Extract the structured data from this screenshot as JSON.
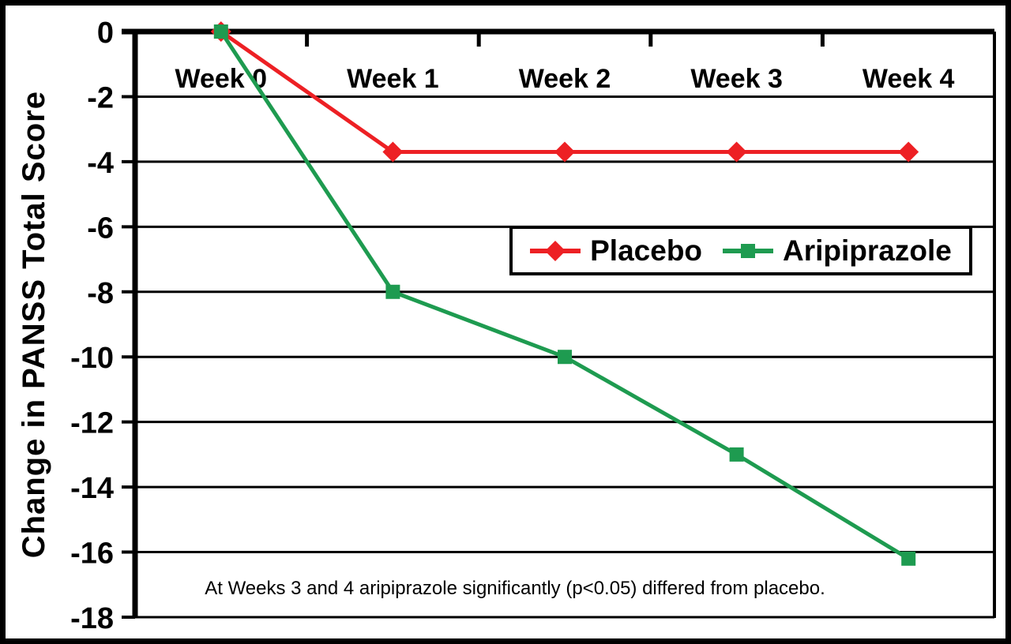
{
  "chart_data": {
    "type": "line",
    "categories": [
      "Week 0",
      "Week 1",
      "Week 2",
      "Week 3",
      "Week 4"
    ],
    "series": [
      {
        "name": "Placebo",
        "color": "#ed2024",
        "marker": "diamond",
        "values": [
          0,
          -3.7,
          -3.7,
          -3.7,
          -3.7
        ]
      },
      {
        "name": "Aripiprazole",
        "color": "#1e9b50",
        "marker": "square",
        "values": [
          0,
          -8,
          -10,
          -13,
          -16.2
        ]
      }
    ],
    "xlabel": "",
    "ylabel": "Change in PANSS Total Score",
    "ylim": [
      -18,
      0
    ],
    "yticks": [
      0,
      -2,
      -4,
      -6,
      -8,
      -10,
      -12,
      -14,
      -16,
      -18
    ],
    "yticklabels": [
      "0",
      "-2",
      "-4",
      "-6",
      "-8",
      "-10",
      "-12",
      "-14",
      "-16",
      "-18"
    ],
    "grid": "horizontal",
    "gridline_color": "#000000",
    "legend_position": "inside-middle-right",
    "annotation": "At Weeks 3 and 4 aripiprazole significantly (p<0.05) differed from placebo."
  }
}
